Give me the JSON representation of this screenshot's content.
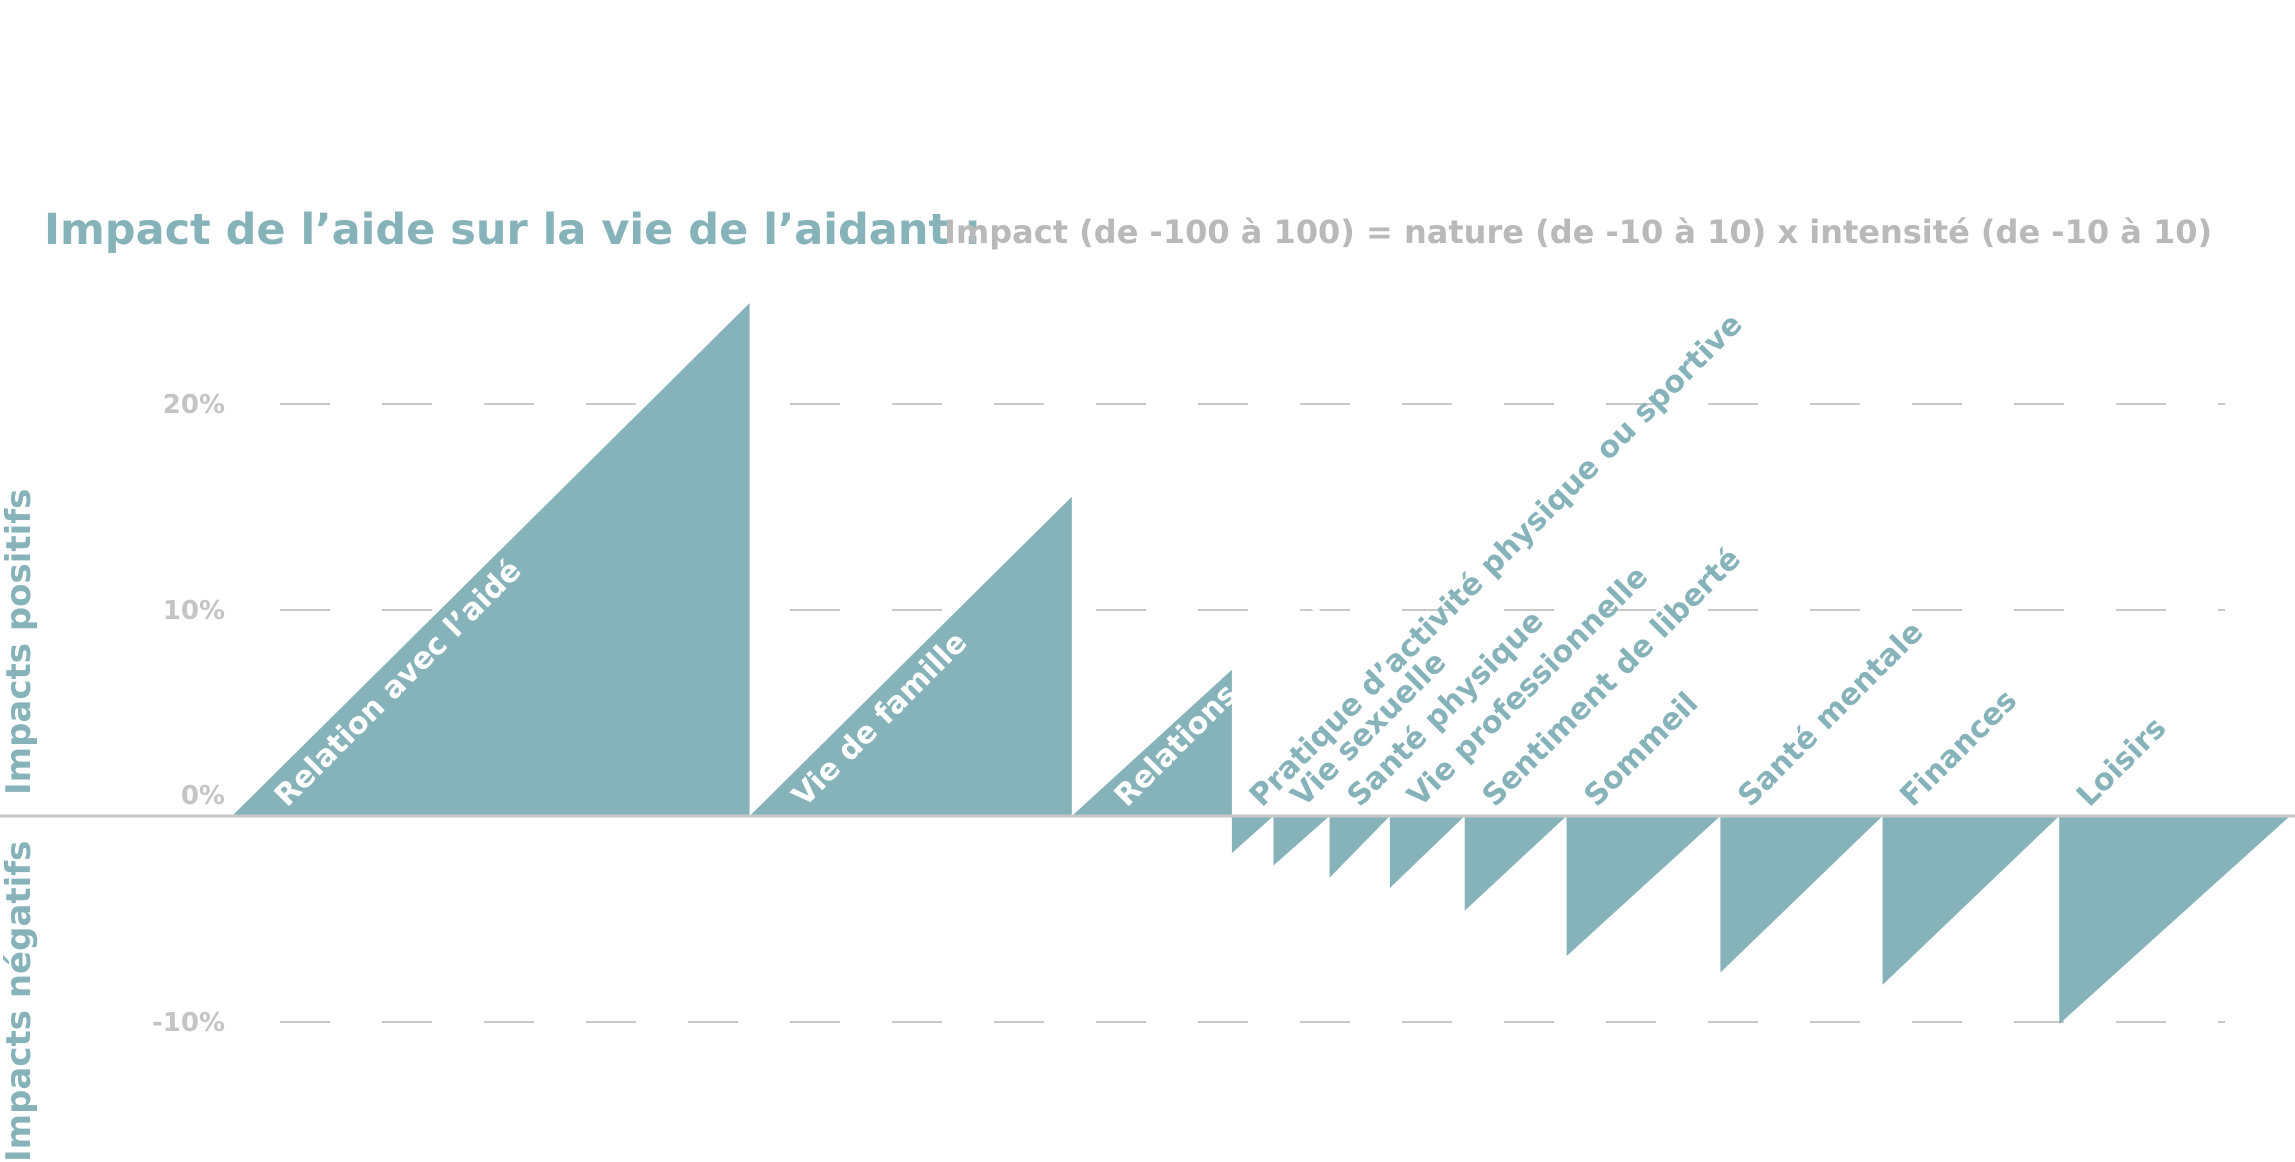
{
  "chart_data": {
    "type": "bar",
    "title": "Impact de l’aide sur la vie de l’aidant :",
    "subtitle": "Impact (de -100 à 100) = nature (de -10 à 10) x intensité (de -10 à 10)",
    "ylabel_positive": "Impacts positifs",
    "ylabel_negative": "Impacts négatifs",
    "yticks": [
      "20%",
      "10%",
      "0%",
      "-10%"
    ],
    "ylim": [
      -16,
      25
    ],
    "grid": true,
    "color": "#86b3b9",
    "categories": [
      "Relation avec l’aidé",
      "Vie de famille",
      "Relations amicales",
      "Pratique d’activité physique ou sportive",
      "Vie sexuelle",
      "Santé physique",
      "Vie professionnelle",
      "Sentiment de liberté",
      "Sommeil",
      "Santé mentale",
      "Finances",
      "Loisirs"
    ],
    "values": [
      24.9,
      15.5,
      7.1,
      -1.8,
      -2.4,
      -3.0,
      -3.5,
      -4.6,
      -6.8,
      -7.6,
      -8.2,
      -10.1
    ],
    "widths": [
      24.9,
      15.5,
      7.7,
      2.0,
      2.7,
      2.9,
      3.6,
      4.9,
      7.4,
      7.8,
      8.5,
      11.1
    ]
  }
}
